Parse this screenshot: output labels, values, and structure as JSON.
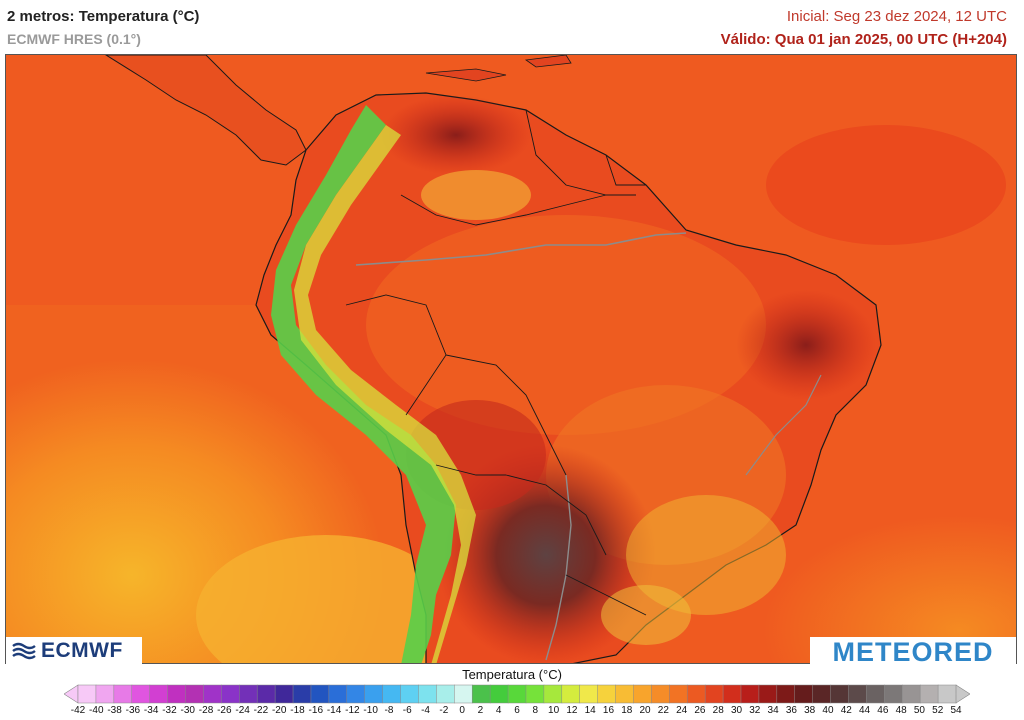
{
  "header": {
    "title": "2 metros: Temperatura (°C)",
    "model": "ECMWF HRES (0.1°)",
    "initial": "Inicial: Seg 23 dez 2024, 12 UTC",
    "valid": "Válido: Qua 01 jan 2025, 00 UTC (H+204)"
  },
  "logos": {
    "ecmwf": "ECMWF",
    "meteored": "METEORED"
  },
  "legend": {
    "title": "Temperatura (°C)",
    "ticks": [
      "-42",
      "-40",
      "-38",
      "-36",
      "-34",
      "-32",
      "-30",
      "-28",
      "-26",
      "-24",
      "-22",
      "-20",
      "-18",
      "-16",
      "-14",
      "-12",
      "-10",
      "-8",
      "-6",
      "-4",
      "-2",
      "0",
      "2",
      "4",
      "6",
      "8",
      "10",
      "12",
      "14",
      "16",
      "18",
      "20",
      "22",
      "24",
      "26",
      "28",
      "30",
      "32",
      "34",
      "36",
      "38",
      "40",
      "42",
      "44",
      "46",
      "48",
      "50",
      "52",
      "54"
    ],
    "colors": [
      "#f7c9f7",
      "#f0a6f0",
      "#e77ae7",
      "#e055e0",
      "#d23fd2",
      "#c030c0",
      "#b331b3",
      "#a033c8",
      "#8a33c8",
      "#7330b8",
      "#5b2aa8",
      "#40289a",
      "#2a3da8",
      "#2255c0",
      "#2a6ed8",
      "#3386e6",
      "#3aa0ee",
      "#45b8f2",
      "#5ed0f2",
      "#7de2ee",
      "#a8eeea",
      "#d6f6f0",
      "#4bc14b",
      "#44cc3c",
      "#58d83a",
      "#76e23a",
      "#a6e83c",
      "#d4ec3e",
      "#f0e84a",
      "#f6d23c",
      "#f8bc34",
      "#f8a42c",
      "#f58c28",
      "#f27324",
      "#ec5a22",
      "#e24420",
      "#d22e1c",
      "#b81e1a",
      "#9a1a18",
      "#7d1a18",
      "#651c1c",
      "#5a2626",
      "#553636",
      "#5c4a4a",
      "#6a6262",
      "#7c7878",
      "#989494",
      "#b4b0b0",
      "#c8c8c8"
    ]
  },
  "map": {
    "region": "South America",
    "colors": {
      "ocean": "#f05a22",
      "ocean_warm": "#f5861f",
      "ocean_cool": "#f5a623",
      "land": "#e94b1f",
      "hot": "#c8231a",
      "very_hot": "#6a3a3a",
      "andes_green": "#5fd04a",
      "andes_yellow": "#d9e23a",
      "border": "#1a1a1a",
      "rivers": "#8c8c8c"
    }
  }
}
